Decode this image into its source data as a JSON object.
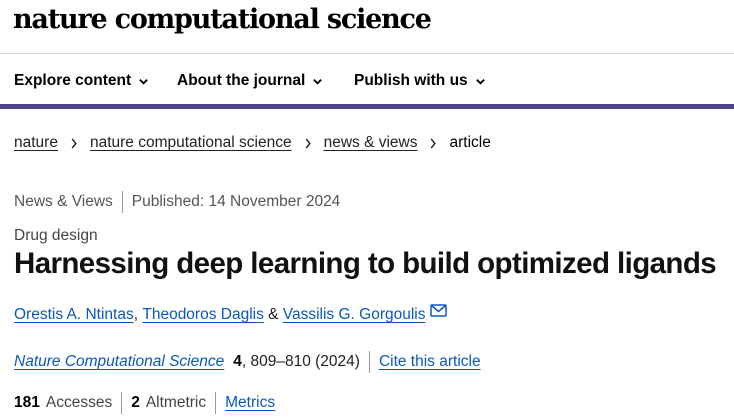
{
  "header": {
    "journal_title": "nature computational science"
  },
  "nav": [
    {
      "label": "Explore content"
    },
    {
      "label": "About the journal"
    },
    {
      "label": "Publish with us"
    }
  ],
  "breadcrumb": {
    "items": [
      "nature",
      "nature computational science",
      "news & views"
    ],
    "current": "article"
  },
  "article": {
    "type": "News & Views",
    "published": "Published: 14 November 2024",
    "subject": "Drug design",
    "title": "Harnessing deep learning to build optimized ligands",
    "authors": [
      "Orestis A. Ntintas",
      "Theodoros Daglis",
      "Vassilis G. Gorgoulis"
    ],
    "author_sep_1": ", ",
    "author_sep_2": " & ",
    "citation": {
      "journal": "Nature Computational Science",
      "volume": "4",
      "pages": ", 809–810 (2024)",
      "cite_label": "Cite this article"
    },
    "metrics": {
      "accesses_count": "181",
      "accesses_label": "Accesses",
      "altmetric_count": "2",
      "altmetric_label": "Altmetric",
      "metrics_link": "Metrics"
    }
  },
  "colors": {
    "accent": "#4c4487",
    "link": "#0a58b8"
  }
}
